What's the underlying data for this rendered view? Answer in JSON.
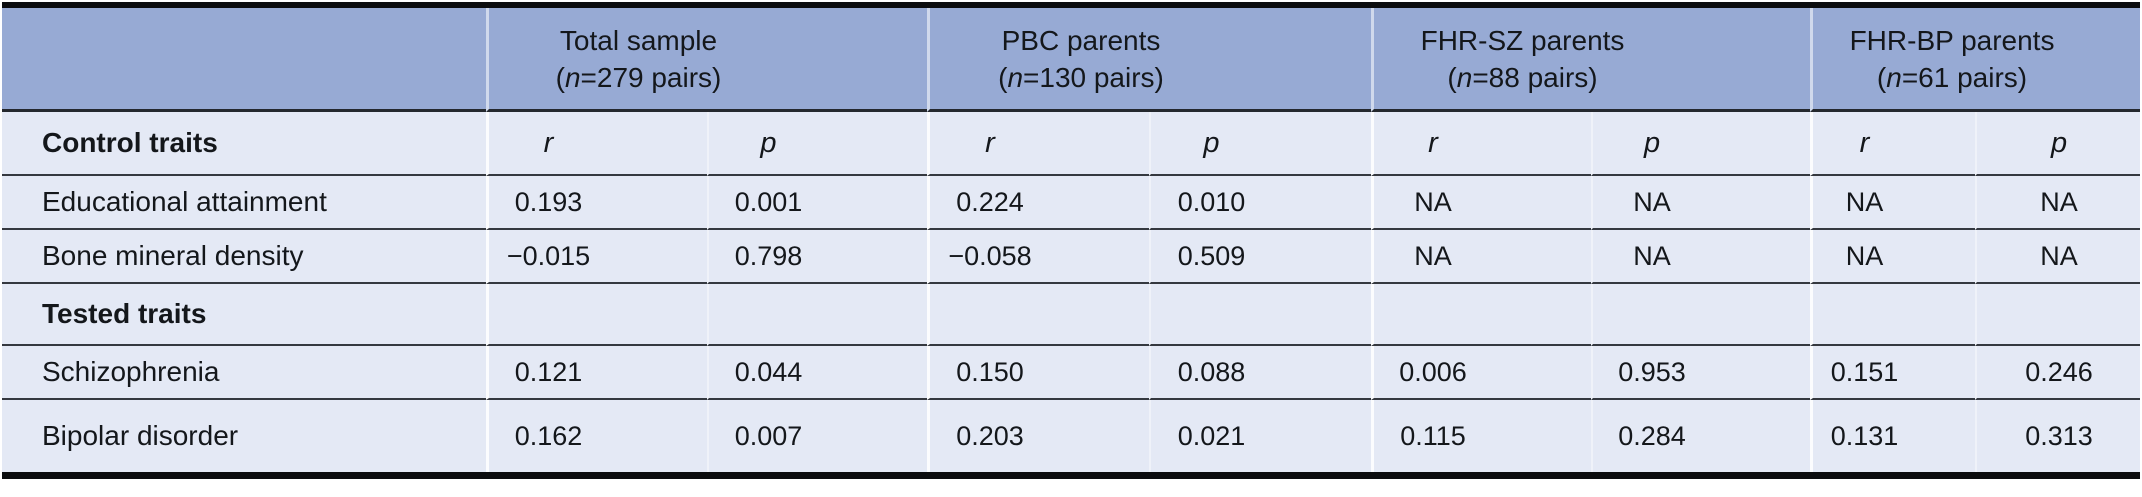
{
  "table": {
    "column_groups": [
      {
        "title": "Total sample",
        "n_open": "(",
        "n_symbol": "n",
        "n_rest": "=279 pairs)"
      },
      {
        "title": "PBC parents",
        "n_open": "(",
        "n_symbol": "n",
        "n_rest": "=130 pairs)"
      },
      {
        "title": "FHR-SZ parents",
        "n_open": "(",
        "n_symbol": "n",
        "n_rest": "=88 pairs)"
      },
      {
        "title": "FHR-BP parents",
        "n_open": "(",
        "n_symbol": "n",
        "n_rest": "=61 pairs)"
      }
    ],
    "stat_r": "r",
    "stat_p": "p",
    "sections": {
      "control": "Control traits",
      "tested": "Tested traits"
    },
    "rows": [
      {
        "label": "Educational attainment",
        "values": [
          "0.193",
          "0.001",
          "0.224",
          "0.010",
          "NA",
          "NA",
          "NA",
          "NA"
        ]
      },
      {
        "label": "Bone mineral density",
        "values": [
          "−0.015",
          "0.798",
          "−0.058",
          "0.509",
          "NA",
          "NA",
          "NA",
          "NA"
        ]
      },
      {
        "label": "Schizophrenia",
        "values": [
          "0.121",
          "0.044",
          "0.150",
          "0.088",
          "0.006",
          "0.953",
          "0.151",
          "0.246"
        ]
      },
      {
        "label": "Bipolar disorder",
        "values": [
          "0.162",
          "0.007",
          "0.203",
          "0.021",
          "0.115",
          "0.284",
          "0.131",
          "0.313"
        ]
      }
    ],
    "colors": {
      "header_bg": "#97aad4",
      "row_bg": "#e4e9f5",
      "rule_dark": "#0b0c0e",
      "rule_row": "#34383f"
    }
  }
}
